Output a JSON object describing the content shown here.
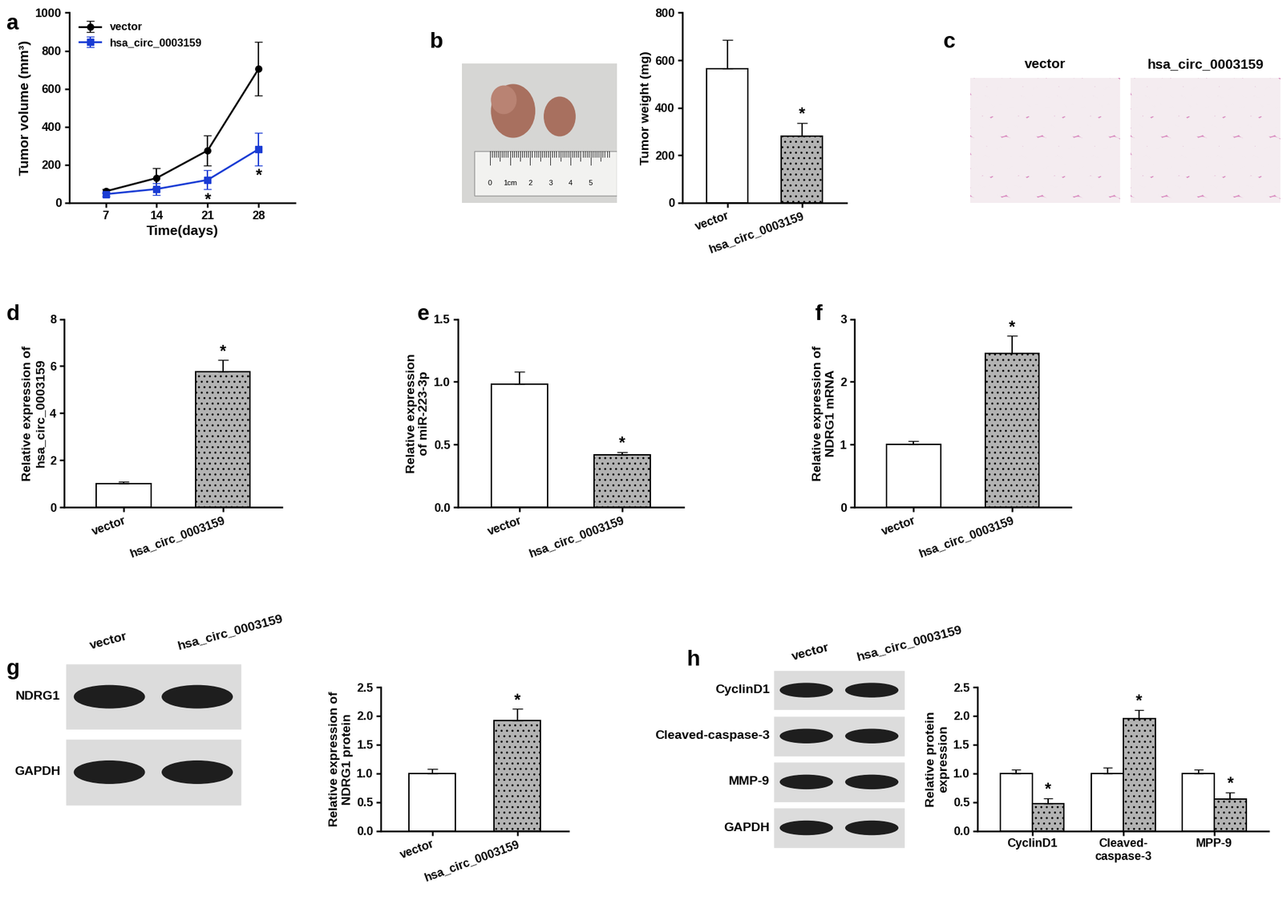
{
  "chart_data": [
    {
      "panel": "a",
      "type": "line",
      "x": [
        7,
        14,
        21,
        28
      ],
      "xlabel": "Time(days)",
      "ylabel": "Tumor volume (mm³)",
      "xlim": [
        2,
        33
      ],
      "xticks": [
        7,
        14,
        21,
        28
      ],
      "ylim": [
        0,
        1000
      ],
      "yticks": [
        0,
        200,
        400,
        600,
        800,
        1000
      ],
      "legend": "upper left",
      "series": [
        {
          "name": "vector",
          "color": "#000000",
          "marker": "o",
          "values": [
            60,
            130,
            275,
            705
          ],
          "errors": [
            10,
            50,
            80,
            140
          ]
        },
        {
          "name": "hsa_circ_0003159",
          "color": "#1a3cd4",
          "marker": "s",
          "values": [
            45,
            72,
            120,
            282
          ],
          "errors": [
            10,
            30,
            50,
            85
          ]
        }
      ],
      "annotations": [
        {
          "series": "hsa_circ_0003159",
          "x": 21,
          "text": "*"
        },
        {
          "series": "hsa_circ_0003159",
          "x": 28,
          "text": "*"
        }
      ]
    },
    {
      "panel": "b",
      "type": "image",
      "ruler_labels": [
        "0",
        "1cm",
        "2",
        "3",
        "4",
        "5"
      ]
    },
    {
      "type": "bar",
      "categories": [
        "vector",
        "hsa_circ_0003159"
      ],
      "values": [
        565,
        280
      ],
      "errors": [
        120,
        55
      ],
      "colors": [
        "#ffffff",
        "#b3b3b3"
      ],
      "ylabel": "Tumor weight (mg)",
      "ylim": [
        0,
        800
      ],
      "yticks": [
        0,
        200,
        400,
        600,
        800
      ],
      "annotations": [
        {
          "category": "hsa_circ_0003159",
          "text": "*"
        }
      ]
    },
    {
      "panel": "c",
      "type": "image",
      "labels": [
        "vector",
        "hsa_circ_0003159"
      ]
    },
    {
      "panel": "d",
      "type": "bar",
      "categories": [
        "vector",
        "hsa_circ_0003159"
      ],
      "values": [
        1.0,
        5.75
      ],
      "errors": [
        0.08,
        0.5
      ],
      "colors": [
        "#ffffff",
        "#b3b3b3"
      ],
      "ylabel": "Relative expression of\nhsa_circ_0003159",
      "ylim": [
        0,
        8
      ],
      "yticks": [
        0,
        2,
        4,
        6,
        8
      ],
      "annotations": [
        {
          "category": "hsa_circ_0003159",
          "text": "*"
        }
      ]
    },
    {
      "panel": "e",
      "type": "bar",
      "categories": [
        "vector",
        "hsa_circ_0003159"
      ],
      "values": [
        0.98,
        0.42
      ],
      "errors": [
        0.1,
        0.02
      ],
      "colors": [
        "#ffffff",
        "#b3b3b3"
      ],
      "ylabel": "Relative expression\nof miR-223-3p",
      "ylim": [
        0,
        1.5
      ],
      "yticks": [
        {
          "value": 0,
          "label": "0.0"
        },
        0.5,
        {
          "value": 1,
          "label": "1.0"
        },
        1.5
      ],
      "annotations": [
        {
          "category": "hsa_circ_0003159",
          "text": "*"
        }
      ]
    },
    {
      "panel": "f",
      "type": "bar",
      "categories": [
        "vector",
        "hsa_circ_0003159"
      ],
      "values": [
        1.0,
        2.45
      ],
      "errors": [
        0.05,
        0.28
      ],
      "colors": [
        "#ffffff",
        "#b3b3b3"
      ],
      "ylabel": "Relative expression of\nNDRG1 mRNA",
      "ylim": [
        0,
        3
      ],
      "yticks": [
        0,
        1,
        2,
        3
      ],
      "annotations": [
        {
          "category": "hsa_circ_0003159",
          "text": "*"
        }
      ]
    },
    {
      "panel": "g",
      "type": "blot",
      "lanes": [
        "vector",
        "hsa_circ_0003159"
      ],
      "rows": [
        "NDRG1",
        "GAPDH"
      ]
    },
    {
      "type": "bar",
      "categories": [
        "vector",
        "hsa_circ_0003159"
      ],
      "values": [
        1.0,
        1.92
      ],
      "errors": [
        0.08,
        0.2
      ],
      "colors": [
        "#ffffff",
        "#b3b3b3"
      ],
      "ylabel": "Relative expression of\nNDRG1 protein",
      "ylim": [
        0,
        2.5
      ],
      "yticks": [
        {
          "value": 0,
          "label": "0.0"
        },
        0.5,
        {
          "value": 1,
          "label": "1.0"
        },
        1.5,
        {
          "value": 2,
          "label": "2.0"
        },
        2.5
      ],
      "annotations": [
        {
          "category": "hsa_circ_0003159",
          "text": "*"
        }
      ]
    },
    {
      "panel": "h",
      "type": "blot",
      "lanes": [
        "vector",
        "hsa_circ_0003159"
      ],
      "rows": [
        "CyclinD1",
        "Cleaved-caspase-3",
        "MMP-9",
        "GAPDH"
      ]
    },
    {
      "type": "bar",
      "categories": [
        "CyclinD1",
        "Cleaved-\ncaspase-3",
        "MPP-9"
      ],
      "ylabel": "Relative protein\nexpression",
      "ylim": [
        0,
        2.5
      ],
      "yticks": [
        {
          "value": 0,
          "label": "0.0"
        },
        0.5,
        {
          "value": 1,
          "label": "1.0"
        },
        1.5,
        {
          "value": 2,
          "label": "2.0"
        },
        2.5
      ],
      "series": [
        {
          "color": "#ffffff",
          "values": [
            1.0,
            1.0,
            1.0
          ],
          "errors": [
            0.07,
            0.1,
            0.06
          ]
        },
        {
          "color": "#b3b3b3",
          "values": [
            0.47,
            1.95,
            0.55
          ],
          "errors": [
            0.1,
            0.15,
            0.12
          ]
        }
      ],
      "annotations": [
        {
          "category": "CyclinD1",
          "text": "*"
        },
        {
          "category": "Cleaved-\ncaspase-3",
          "text": "*"
        },
        {
          "category": "MPP-9",
          "text": "*"
        }
      ]
    }
  ]
}
